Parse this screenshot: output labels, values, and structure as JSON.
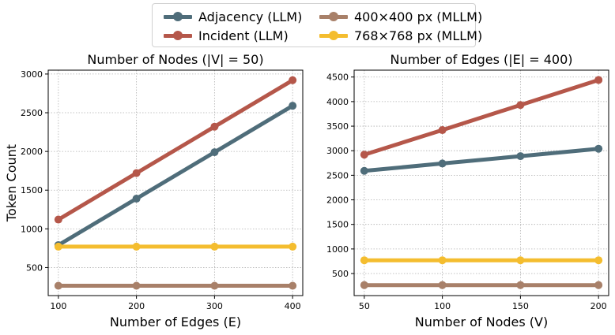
{
  "legend": {
    "items": [
      {
        "label": "Adjacency (LLM)",
        "color": "#4f6d7a"
      },
      {
        "label": "Incident (LLM)",
        "color": "#b5574a"
      },
      {
        "label": "400×400 px (MLLM)",
        "color": "#a88069"
      },
      {
        "label": "768×768 px (MLLM)",
        "color": "#f4bd2f"
      }
    ]
  },
  "chart_data": [
    {
      "type": "line",
      "title": "Number of Nodes (|V| = 50)",
      "xlabel": "Number of Edges (E)",
      "ylabel": "Token Count",
      "x": [
        100,
        200,
        300,
        400
      ],
      "xticks": [
        "100",
        "200",
        "300",
        "400"
      ],
      "yticks": [
        "500",
        "1000",
        "1500",
        "2000",
        "2500",
        "3000"
      ],
      "xlim": [
        87,
        413
      ],
      "ylim": [
        138,
        3050
      ],
      "grid": true,
      "series": [
        {
          "name": "Adjacency (LLM)",
          "color": "#4f6d7a",
          "values": [
            790,
            1390,
            1990,
            2590
          ]
        },
        {
          "name": "Incident (LLM)",
          "color": "#b5574a",
          "values": [
            1120,
            1720,
            2320,
            2920
          ]
        },
        {
          "name": "400×400 px (MLLM)",
          "color": "#a88069",
          "values": [
            265,
            265,
            265,
            265
          ]
        },
        {
          "name": "768×768 px (MLLM)",
          "color": "#f4bd2f",
          "values": [
            770,
            770,
            770,
            770
          ]
        }
      ]
    },
    {
      "type": "line",
      "title": "Number of Edges (|E| = 400)",
      "xlabel": "Number of Nodes (V)",
      "ylabel": "",
      "x": [
        50,
        100,
        150,
        200
      ],
      "xticks": [
        "50",
        "100",
        "150",
        "200"
      ],
      "yticks": [
        "500",
        "1000",
        "1500",
        "2000",
        "2500",
        "3000",
        "3500",
        "4000",
        "4500"
      ],
      "xlim": [
        43.5,
        206.5
      ],
      "ylim": [
        51,
        4640
      ],
      "grid": true,
      "series": [
        {
          "name": "Adjacency (LLM)",
          "color": "#4f6d7a",
          "values": [
            2590,
            2740,
            2890,
            3040
          ]
        },
        {
          "name": "Incident (LLM)",
          "color": "#b5574a",
          "values": [
            2920,
            3420,
            3930,
            4440
          ]
        },
        {
          "name": "400×400 px (MLLM)",
          "color": "#a88069",
          "values": [
            265,
            265,
            265,
            265
          ]
        },
        {
          "name": "768×768 px (MLLM)",
          "color": "#f4bd2f",
          "values": [
            770,
            770,
            770,
            770
          ]
        }
      ]
    }
  ]
}
